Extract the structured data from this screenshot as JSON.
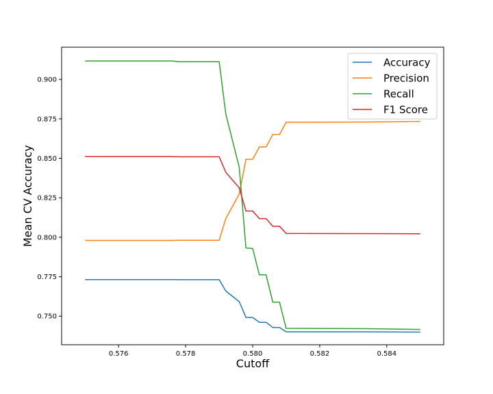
{
  "chart_data": {
    "type": "line",
    "xlabel": "Cutoff",
    "ylabel": "Mean CV Accuracy",
    "xlim": [
      0.5743,
      0.5857
    ],
    "ylim": [
      0.7319,
      0.9204
    ],
    "xticks": [
      0.576,
      0.578,
      0.58,
      0.582,
      0.584
    ],
    "xtick_labels": [
      "0.576",
      "0.578",
      "0.580",
      "0.582",
      "0.584"
    ],
    "yticks": [
      0.75,
      0.775,
      0.8,
      0.825,
      0.85,
      0.875,
      0.9
    ],
    "ytick_labels": [
      "0.750",
      "0.775",
      "0.800",
      "0.825",
      "0.850",
      "0.875",
      "0.900"
    ],
    "grid": false,
    "legend_position": "top-right",
    "series": [
      {
        "name": "Accuracy",
        "color": "#1f77b4",
        "x": [
          0.575,
          0.5776,
          0.5778,
          0.579,
          0.5792,
          0.5796,
          0.5798,
          0.58,
          0.5802,
          0.5804,
          0.5806,
          0.5808,
          0.581,
          0.5834,
          0.585
        ],
        "y": [
          0.7732,
          0.7732,
          0.7731,
          0.7731,
          0.7659,
          0.7592,
          0.7492,
          0.7492,
          0.7461,
          0.7461,
          0.7428,
          0.7428,
          0.7401,
          0.7401,
          0.7399
        ]
      },
      {
        "name": "Precision",
        "color": "#ff7f0e",
        "x": [
          0.575,
          0.5776,
          0.5778,
          0.579,
          0.5792,
          0.5796,
          0.5798,
          0.58,
          0.5802,
          0.5804,
          0.5806,
          0.5808,
          0.581,
          0.5834,
          0.585
        ],
        "y": [
          0.798,
          0.798,
          0.7981,
          0.7981,
          0.8118,
          0.8274,
          0.8494,
          0.8494,
          0.8572,
          0.8572,
          0.8651,
          0.8651,
          0.8729,
          0.873,
          0.8734
        ]
      },
      {
        "name": "Recall",
        "color": "#2ca02c",
        "x": [
          0.575,
          0.5776,
          0.5778,
          0.579,
          0.5792,
          0.5796,
          0.5798,
          0.58,
          0.5802,
          0.5804,
          0.5806,
          0.5808,
          0.581,
          0.5834,
          0.585
        ],
        "y": [
          0.9117,
          0.9117,
          0.9112,
          0.9112,
          0.878,
          0.8443,
          0.7932,
          0.7929,
          0.7762,
          0.7762,
          0.7589,
          0.7589,
          0.7423,
          0.7421,
          0.7416
        ]
      },
      {
        "name": "F1 Score",
        "color": "#d62728",
        "x": [
          0.575,
          0.5776,
          0.5778,
          0.579,
          0.5792,
          0.5796,
          0.5798,
          0.58,
          0.5802,
          0.5804,
          0.5806,
          0.5808,
          0.581,
          0.5834,
          0.585
        ],
        "y": [
          0.8512,
          0.8512,
          0.851,
          0.851,
          0.8411,
          0.8313,
          0.8166,
          0.8166,
          0.8118,
          0.8118,
          0.807,
          0.807,
          0.8024,
          0.8023,
          0.8022
        ]
      }
    ]
  }
}
